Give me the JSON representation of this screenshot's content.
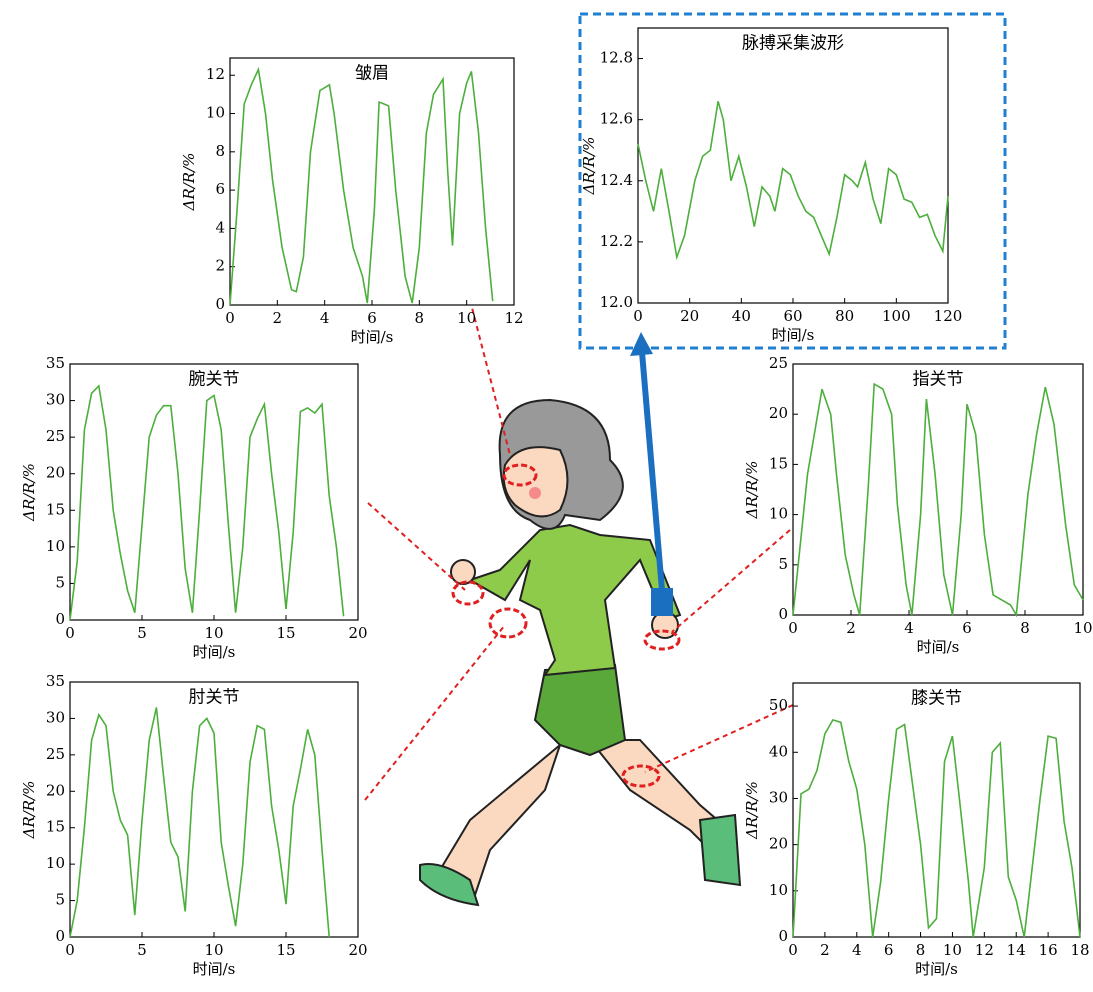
{
  "chart_data": [
    {
      "type": "line",
      "title": "皱眉",
      "xlabel": "时间/s",
      "ylabel": "ΔR/R/%",
      "color": "#4caf3c",
      "xlim": [
        0,
        12
      ],
      "ylim": [
        0,
        12.9
      ],
      "xticks": [
        0,
        2,
        4,
        6,
        8,
        10,
        12
      ],
      "yticks": [
        0,
        2,
        4,
        6,
        8,
        10,
        12
      ],
      "x": [
        0,
        0.3,
        0.6,
        0.9,
        1.2,
        1.5,
        1.8,
        2.2,
        2.6,
        2.8,
        3.1,
        3.4,
        3.8,
        4.2,
        4.4,
        4.8,
        5.2,
        5.6,
        5.8,
        6.1,
        6.3,
        6.7,
        7.0,
        7.4,
        7.7,
        8.0,
        8.3,
        8.6,
        9.0,
        9.2,
        9.4,
        9.7,
        10.0,
        10.2,
        10.5,
        10.8,
        11.1
      ],
      "values": [
        0,
        5,
        10.5,
        11.5,
        12.3,
        10,
        6.5,
        3,
        0.8,
        0.7,
        2.5,
        8,
        11.2,
        11.5,
        10,
        6,
        3,
        1.5,
        0.1,
        5,
        10.6,
        10.4,
        6,
        1.5,
        0.1,
        3,
        9,
        11,
        11.8,
        7,
        3.1,
        10,
        11.6,
        12.2,
        9,
        4,
        0.2
      ]
    },
    {
      "type": "line",
      "title": "脉搏采集波形",
      "xlabel": "时间/s",
      "ylabel": "ΔR/R/%",
      "color": "#4caf3c",
      "xlim": [
        0,
        120
      ],
      "ylim": [
        12,
        12.9
      ],
      "xticks": [
        0,
        20,
        40,
        60,
        80,
        100,
        120
      ],
      "yticks": [
        {
          "value": 12,
          "label": "12.0"
        },
        12.2,
        12.4,
        12.6,
        12.8
      ],
      "x": [
        0,
        3,
        6,
        9,
        12,
        15,
        18,
        22,
        25,
        28,
        31,
        33,
        36,
        39,
        42,
        45,
        48,
        51,
        53,
        56,
        59,
        62,
        65,
        68,
        71,
        74,
        77,
        80,
        83,
        85,
        88,
        91,
        94,
        97,
        100,
        103,
        106,
        109,
        112,
        115,
        118,
        120
      ],
      "values": [
        12.52,
        12.4,
        12.3,
        12.44,
        12.3,
        12.15,
        12.22,
        12.4,
        12.48,
        12.5,
        12.66,
        12.6,
        12.4,
        12.48,
        12.38,
        12.25,
        12.38,
        12.35,
        12.3,
        12.44,
        12.42,
        12.35,
        12.3,
        12.28,
        12.22,
        12.16,
        12.28,
        12.42,
        12.4,
        12.38,
        12.46,
        12.34,
        12.26,
        12.44,
        12.42,
        12.34,
        12.33,
        12.28,
        12.29,
        12.22,
        12.17,
        12.35
      ]
    },
    {
      "type": "line",
      "title": "腕关节",
      "xlabel": "时间/s",
      "ylabel": "ΔR/R/%",
      "color": "#4caf3c",
      "xlim": [
        0,
        20
      ],
      "ylim": [
        0,
        35
      ],
      "xticks": [
        0,
        5,
        10,
        15,
        20
      ],
      "yticks": [
        0,
        5,
        10,
        15,
        20,
        25,
        30,
        35
      ],
      "x": [
        0,
        0.5,
        1,
        1.5,
        2,
        2.5,
        3,
        3.5,
        4,
        4.5,
        5,
        5.5,
        6,
        6.5,
        7,
        7.5,
        8,
        8.5,
        9,
        9.5,
        10,
        10.5,
        11,
        11.5,
        12,
        12.5,
        13,
        13.5,
        14,
        14.5,
        15,
        15.5,
        16,
        16.5,
        17,
        17.5,
        18,
        18.5,
        19
      ],
      "values": [
        0,
        8,
        26,
        31,
        32,
        26,
        15,
        9,
        4,
        1,
        13,
        25,
        28,
        29.3,
        29.3,
        20,
        7,
        1,
        15,
        30,
        30.7,
        26,
        13,
        1,
        10,
        25,
        27.5,
        29.5,
        20,
        12,
        1.5,
        12,
        28.5,
        29,
        28.3,
        29.5,
        17,
        10,
        0.5
      ]
    },
    {
      "type": "line",
      "title": "肘关节",
      "xlabel": "时间/s",
      "ylabel": "ΔR/R/%",
      "color": "#4caf3c",
      "xlim": [
        0,
        20
      ],
      "ylim": [
        0,
        35
      ],
      "xticks": [
        0,
        5,
        10,
        15,
        20
      ],
      "yticks": [
        0,
        5,
        10,
        15,
        20,
        25,
        30,
        35
      ],
      "x": [
        0,
        0.5,
        1,
        1.5,
        2,
        2.5,
        3,
        3.5,
        4,
        4.5,
        5,
        5.5,
        6,
        6.5,
        7,
        7.5,
        8,
        8.5,
        9,
        9.5,
        10,
        10.5,
        11,
        11.5,
        12,
        12.5,
        13,
        13.5,
        14,
        14.5,
        15,
        15.5,
        16,
        16.5,
        17,
        17.5,
        18
      ],
      "values": [
        0,
        5,
        15,
        27,
        30.5,
        29,
        20,
        16,
        14,
        3,
        16,
        27,
        31.5,
        22,
        13,
        11,
        3.5,
        20,
        29,
        30,
        28,
        13,
        7,
        1.5,
        10,
        24,
        29,
        28.5,
        18,
        12,
        4.5,
        18,
        23,
        28.5,
        25,
        12,
        0
      ]
    },
    {
      "type": "line",
      "title": "指关节",
      "xlabel": "时间/s",
      "ylabel": "ΔR/R/%",
      "color": "#4caf3c",
      "xlim": [
        0,
        10
      ],
      "ylim": [
        0,
        25
      ],
      "xticks": [
        0,
        2,
        4,
        6,
        8,
        10
      ],
      "yticks": [
        0,
        5,
        10,
        15,
        20,
        25
      ],
      "x": [
        0,
        0.5,
        1,
        1.3,
        1.5,
        1.8,
        2.1,
        2.3,
        2.6,
        2.8,
        3.1,
        3.4,
        3.6,
        3.9,
        4.1,
        4.4,
        4.6,
        4.9,
        5.2,
        5.5,
        5.8,
        6,
        6.3,
        6.6,
        6.9,
        7.5,
        7.7,
        8.1,
        8.4,
        8.7,
        9,
        9.4,
        9.7,
        10
      ],
      "values": [
        0,
        14,
        22.5,
        20,
        14,
        6,
        2,
        0,
        13,
        23,
        22.5,
        20,
        11,
        3,
        0,
        10,
        21.5,
        14,
        4,
        0,
        10,
        21,
        18,
        8,
        2,
        1,
        0,
        12,
        18,
        22.7,
        19,
        9,
        3,
        1.5
      ]
    },
    {
      "type": "line",
      "title": "膝关节",
      "xlabel": "时间/s",
      "ylabel": "ΔR/R/%",
      "color": "#4caf3c",
      "xlim": [
        0,
        18
      ],
      "ylim": [
        0,
        55
      ],
      "xticks": [
        0,
        2,
        4,
        6,
        8,
        10,
        12,
        14,
        16,
        18
      ],
      "yticks": [
        0,
        10,
        20,
        30,
        40,
        50
      ],
      "x": [
        0,
        0.5,
        1,
        1.5,
        2,
        2.5,
        3,
        3.5,
        4,
        4.5,
        5,
        5.5,
        6,
        6.5,
        7,
        7.5,
        8,
        8.5,
        9,
        9.5,
        10,
        10.5,
        11,
        11.3,
        12,
        12.5,
        13,
        13.5,
        14,
        14.5,
        15,
        15.5,
        16,
        16.5,
        17,
        17.5,
        18
      ],
      "values": [
        0,
        31,
        32,
        36,
        44,
        47,
        46.5,
        38,
        32,
        20,
        0,
        12,
        30,
        45,
        46,
        33,
        20,
        2,
        4,
        38,
        43.5,
        28,
        12,
        0,
        15,
        40,
        42,
        13,
        8,
        0,
        15,
        30,
        43.5,
        43,
        25,
        15,
        0
      ]
    }
  ]
}
